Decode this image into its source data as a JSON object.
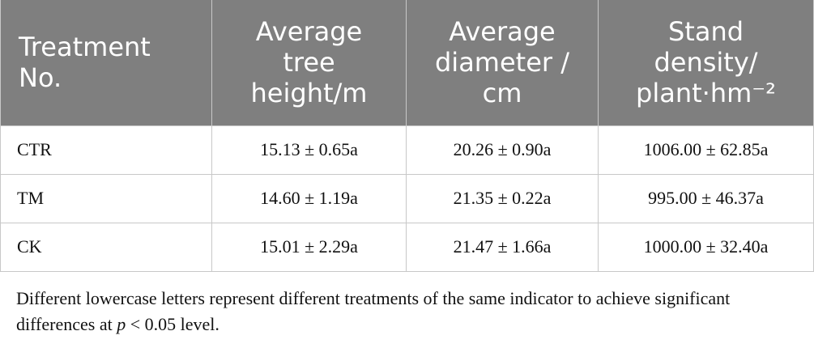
{
  "table": {
    "headers": [
      {
        "lines": [
          "Treatment",
          "No."
        ]
      },
      {
        "lines": [
          "Average",
          "tree",
          "height/m"
        ]
      },
      {
        "lines": [
          "Average",
          "diameter /",
          "cm"
        ]
      },
      {
        "lines": [
          "Stand",
          "density/",
          "plant·hm⁻²"
        ]
      }
    ],
    "rows": [
      [
        "CTR",
        "15.13 ± 0.65a",
        "20.26 ± 0.90a",
        "1006.00 ± 62.85a"
      ],
      [
        "TM",
        "14.60 ± 1.19a",
        "21.35 ± 0.22a",
        "995.00 ± 46.37a"
      ],
      [
        "CK",
        "15.01 ± 2.29a",
        "21.47 ± 1.66a",
        "1000.00 ± 32.40a"
      ]
    ]
  },
  "footnote": {
    "before": "Different lowercase letters represent different treatments of the same indicator to achieve significant differences at ",
    "italic": "p",
    "after": " < 0.05 level."
  }
}
